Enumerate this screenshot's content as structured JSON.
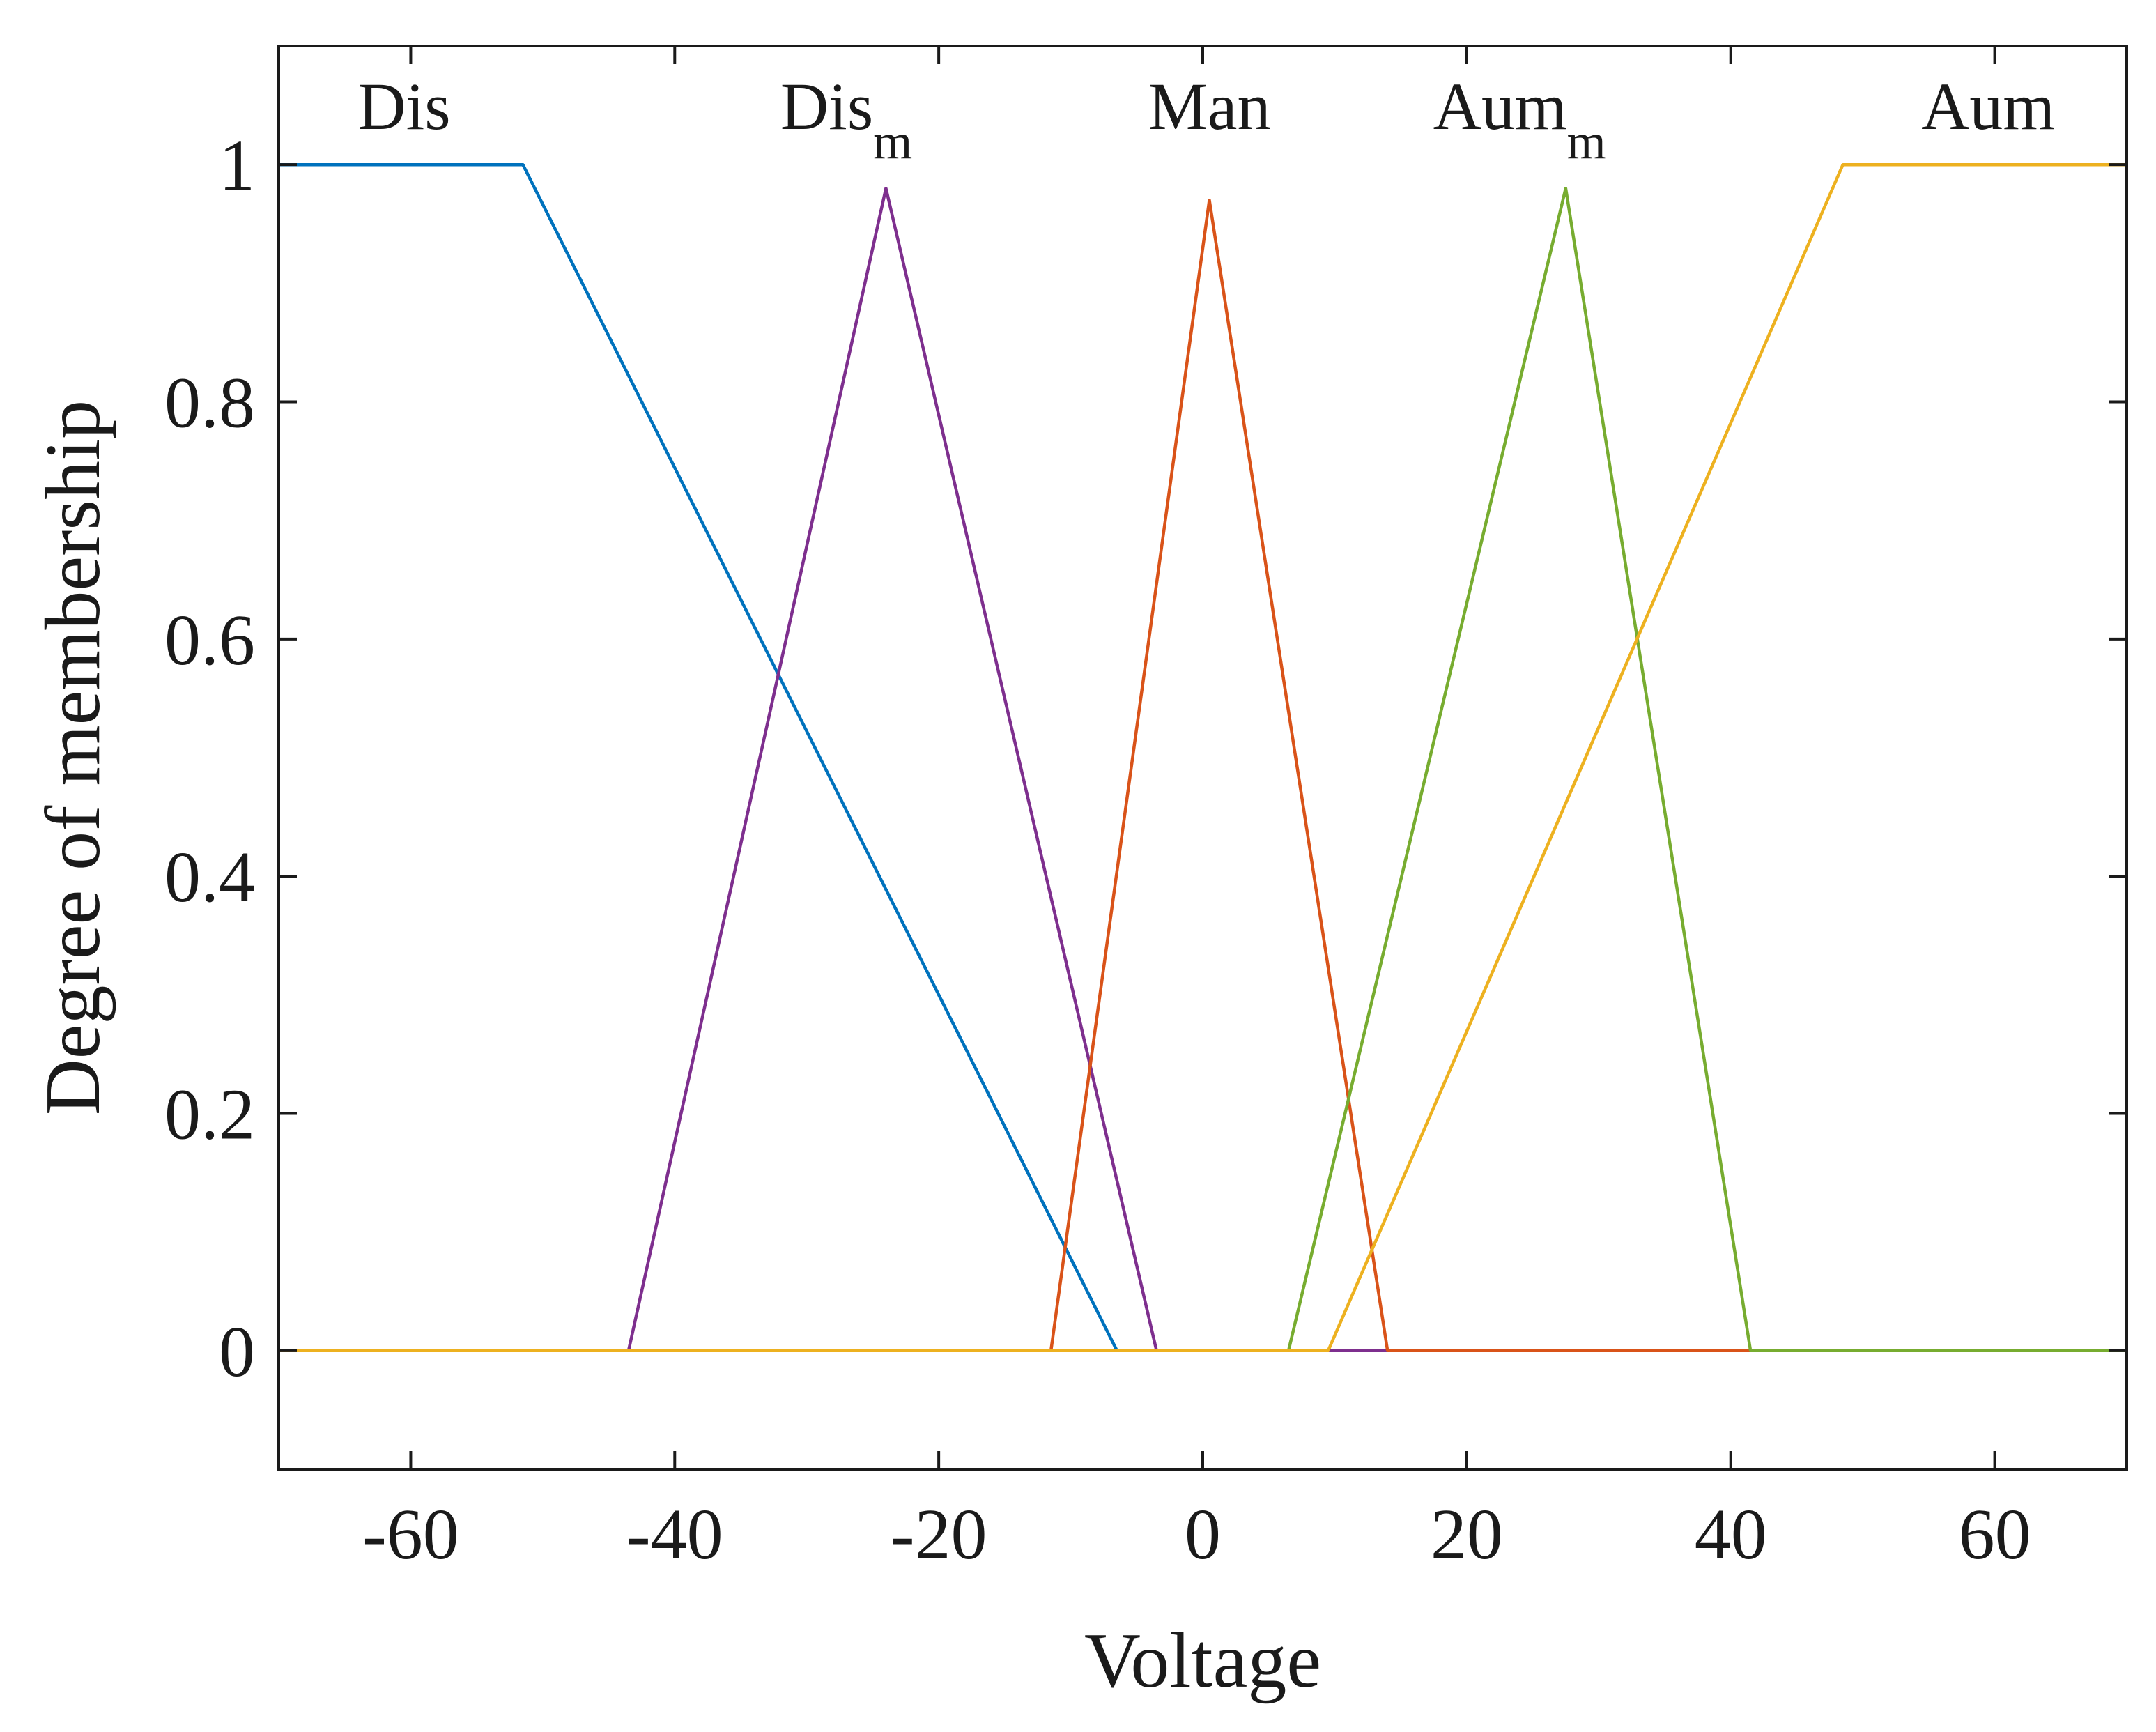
{
  "chart_data": {
    "type": "line",
    "title": "",
    "xlabel": "Voltage",
    "ylabel": "Degree of membership",
    "xlim": [
      -70,
      70
    ],
    "ylim": [
      -0.1,
      1.1
    ],
    "xticks": [
      "-60",
      "-40",
      "-20",
      "0",
      "20",
      "40",
      "60"
    ],
    "yticks": [
      "0",
      "0.2",
      "0.4",
      "0.6",
      "0.8",
      "1"
    ],
    "grid": false,
    "legend": "none",
    "series": [
      {
        "name": "Dis",
        "label_main": "Dis",
        "label_sub": "",
        "label_at": [
          -60.5,
          1.05
        ],
        "color": "#0072BD",
        "x": [
          -70,
          -51.5,
          -6.5,
          70
        ],
        "y": [
          1,
          1,
          0,
          0
        ]
      },
      {
        "name": "Dism",
        "label_main": "Dis",
        "label_sub": "m",
        "label_at": [
          -27,
          1.05
        ],
        "color": "#7E2F8E",
        "x": [
          -70,
          -43.5,
          -24,
          -3.5,
          70
        ],
        "y": [
          0,
          0,
          0.98,
          0,
          0
        ]
      },
      {
        "name": "Man",
        "label_main": "Man",
        "label_sub": "",
        "label_at": [
          0.5,
          1.05
        ],
        "color": "#D95319",
        "x": [
          -70,
          -11.5,
          0.5,
          14,
          70
        ],
        "y": [
          0,
          0,
          0.97,
          0,
          0
        ]
      },
      {
        "name": "Aumm",
        "label_main": "Aum",
        "label_sub": "m",
        "label_at": [
          24,
          1.05
        ],
        "color": "#77AC30",
        "x": [
          -70,
          6.5,
          27.5,
          41.5,
          70
        ],
        "y": [
          0,
          0,
          0.98,
          0,
          0
        ]
      },
      {
        "name": "Aum",
        "label_main": "Aum",
        "label_sub": "",
        "label_at": [
          59.5,
          1.05
        ],
        "color": "#EDB120",
        "x": [
          -70,
          9.5,
          48.5,
          70
        ],
        "y": [
          0,
          0,
          1,
          1
        ]
      }
    ]
  }
}
